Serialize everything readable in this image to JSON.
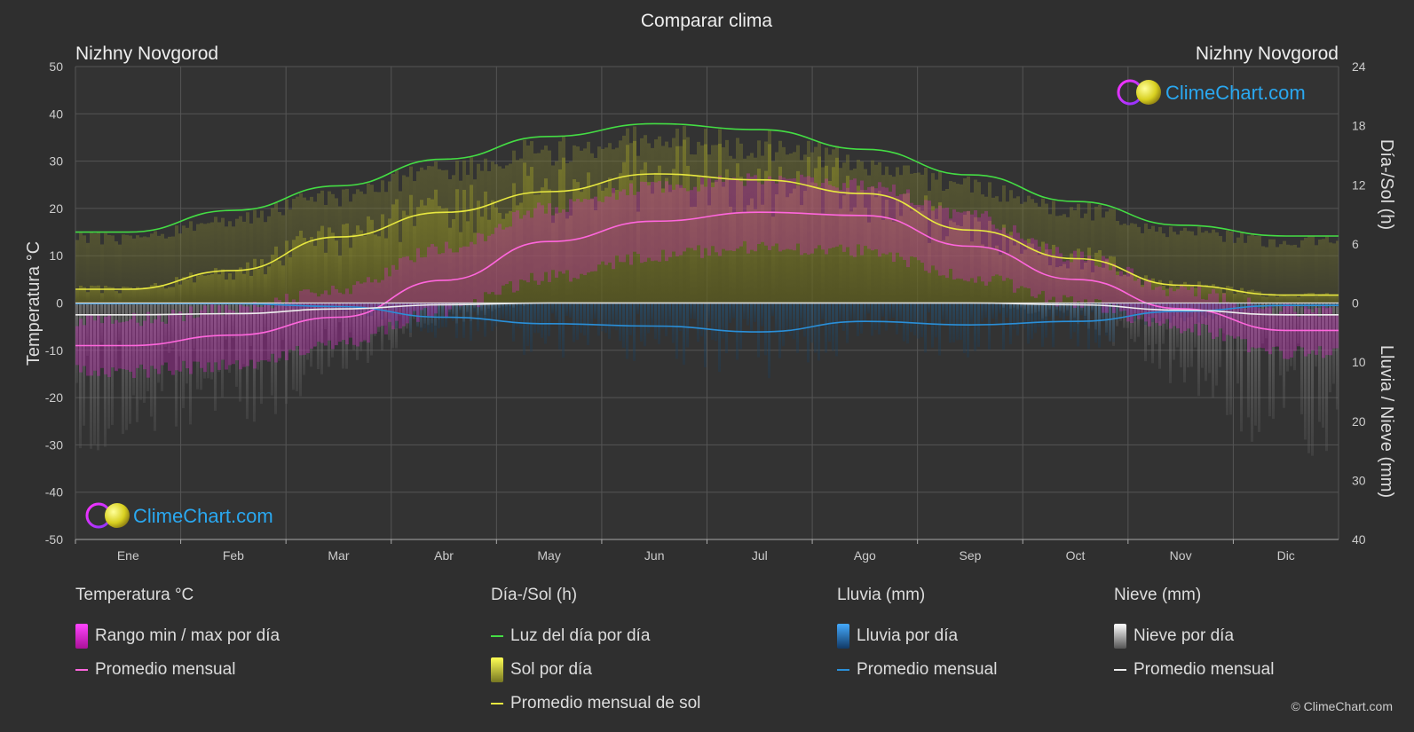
{
  "chart_data": {
    "type": "area",
    "title": "Comparar clima",
    "location_left": "Nizhny Novgorod",
    "location_right": "Nizhny Novgorod",
    "left_axis": {
      "label": "Temperatura °C",
      "range": [
        -50,
        50
      ],
      "ticks": [
        50,
        40,
        30,
        20,
        10,
        0,
        -10,
        -20,
        -30,
        -40,
        -50
      ]
    },
    "right_axis_top": {
      "label": "Día-/Sol (h)",
      "range": [
        0,
        24
      ],
      "ticks": [
        24,
        18,
        12,
        6,
        0
      ]
    },
    "right_axis_bottom": {
      "label": "Lluvia / Nieve (mm)",
      "range": [
        0,
        40
      ],
      "ticks": [
        10,
        20,
        30,
        40
      ]
    },
    "categories": [
      "Ene",
      "Feb",
      "Mar",
      "Abr",
      "May",
      "Jun",
      "Jul",
      "Ago",
      "Sep",
      "Oct",
      "Nov",
      "Dic"
    ],
    "grid": true,
    "series": [
      {
        "name": "Luz del día por día",
        "axis": "hours",
        "values": [
          7.2,
          9.4,
          11.9,
          14.6,
          16.9,
          18.2,
          17.6,
          15.6,
          13.0,
          10.3,
          7.9,
          6.8
        ]
      },
      {
        "name": "Sol por día",
        "axis": "hours",
        "values": [
          1.4,
          3.3,
          6.7,
          9.2,
          11.3,
          13.1,
          12.5,
          11.1,
          7.4,
          4.5,
          1.8,
          0.8
        ]
      },
      {
        "name": "Promedio mensual de sol",
        "axis": "hours",
        "values": [
          1.4,
          3.3,
          6.7,
          9.2,
          11.3,
          13.1,
          12.5,
          11.1,
          7.4,
          4.5,
          1.8,
          0.8
        ]
      },
      {
        "name": "Promedio mensual",
        "group": "Temperatura °C",
        "axis": "temp",
        "values": [
          -9.0,
          -6.8,
          -3.0,
          4.8,
          13.0,
          17.3,
          19.2,
          18.5,
          12.0,
          5.0,
          -1.2,
          -5.8
        ]
      },
      {
        "name": "Rango min / max por día",
        "axis": "temp",
        "min": [
          -13.0,
          -11.5,
          -7.5,
          0.0,
          7.0,
          11.5,
          13.5,
          12.5,
          7.0,
          1.5,
          -3.5,
          -9.0
        ],
        "max": [
          -5.0,
          -3.0,
          1.5,
          10.0,
          18.5,
          23.0,
          24.5,
          23.5,
          17.0,
          8.5,
          1.0,
          -3.0
        ]
      },
      {
        "name": "Lluvia por día",
        "axis": "precip",
        "values": [
          0.1,
          0.1,
          0.6,
          2.4,
          3.5,
          3.9,
          4.9,
          3.1,
          3.7,
          3.1,
          1.4,
          0.4
        ]
      },
      {
        "name": "Promedio mensual",
        "group": "Lluvia (mm)",
        "axis": "precip",
        "values": [
          0.1,
          0.1,
          0.6,
          2.4,
          3.5,
          3.9,
          4.9,
          3.1,
          3.7,
          3.1,
          1.4,
          0.4
        ]
      },
      {
        "name": "Nieve por día",
        "axis": "precip",
        "values": [
          2.0,
          1.8,
          1.0,
          0.3,
          0.0,
          0.0,
          0.0,
          0.0,
          0.0,
          0.3,
          1.2,
          2.0
        ]
      },
      {
        "name": "Promedio mensual",
        "group": "Nieve (mm)",
        "axis": "precip",
        "values": [
          2.0,
          1.8,
          1.0,
          0.3,
          0.0,
          0.0,
          0.0,
          0.0,
          0.0,
          0.3,
          1.2,
          2.0
        ]
      }
    ]
  },
  "colors": {
    "daylight": "#44dd44",
    "sunshine": "#e8e840",
    "sunshine_fill": "#8a8a20",
    "temp_avg": "#ff66dd",
    "temp_range": "#dd22cc",
    "rain": "#2a8fd8",
    "snow": "#eeeeee",
    "grid": "#555555"
  },
  "watermark": "ClimeChart.com",
  "legend": {
    "temperature": {
      "head": "Temperatura °C",
      "range": "Rango min / max por día",
      "avg": "Promedio mensual"
    },
    "sun": {
      "head": "Día-/Sol (h)",
      "daylight": "Luz del día por día",
      "sunshine": "Sol por día",
      "sun_avg": "Promedio mensual de sol"
    },
    "rain": {
      "head": "Lluvia (mm)",
      "rain_day": "Lluvia por día",
      "avg": "Promedio mensual"
    },
    "snow": {
      "head": "Nieve (mm)",
      "snow_day": "Nieve por día",
      "avg": "Promedio mensual"
    }
  },
  "copyright": "© ClimeChart.com"
}
